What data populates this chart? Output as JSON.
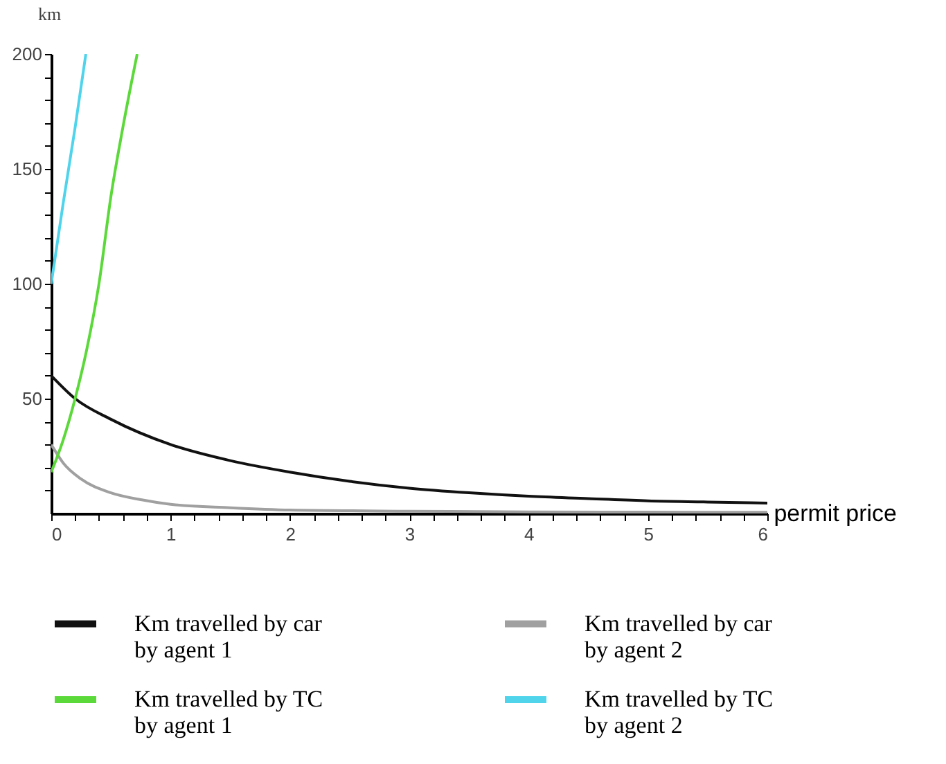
{
  "chart_data": {
    "type": "line",
    "xlabel": "permit price",
    "ylabel": "km",
    "xlim": [
      0,
      6
    ],
    "ylim": [
      0,
      200
    ],
    "xticks": [
      0,
      {
        "value": 0.2,
        "label": null
      },
      {
        "value": 0.4,
        "label": null
      },
      {
        "value": 0.6,
        "label": null
      },
      {
        "value": 0.8,
        "label": null
      },
      1,
      {
        "value": 1.2,
        "label": null
      },
      {
        "value": 1.4,
        "label": null
      },
      {
        "value": 1.6,
        "label": null
      },
      {
        "value": 1.8,
        "label": null
      },
      2,
      {
        "value": 2.2,
        "label": null
      },
      {
        "value": 2.4,
        "label": null
      },
      {
        "value": 2.6,
        "label": null
      },
      {
        "value": 2.8,
        "label": null
      },
      3,
      {
        "value": 3.2,
        "label": null
      },
      {
        "value": 3.4,
        "label": null
      },
      {
        "value": 3.6,
        "label": null
      },
      {
        "value": 3.8,
        "label": null
      },
      4,
      {
        "value": 4.2,
        "label": null
      },
      {
        "value": 4.4,
        "label": null
      },
      {
        "value": 4.6,
        "label": null
      },
      {
        "value": 4.8,
        "label": null
      },
      5,
      {
        "value": 5.2,
        "label": null
      },
      {
        "value": 5.4,
        "label": null
      },
      {
        "value": 5.6,
        "label": null
      },
      {
        "value": 5.8,
        "label": null
      },
      6
    ],
    "yticks": [
      {
        "value": 10,
        "label": null
      },
      {
        "value": 20,
        "label": null
      },
      {
        "value": 30,
        "label": null
      },
      {
        "value": 40,
        "label": null
      },
      50,
      {
        "value": 60,
        "label": null
      },
      {
        "value": 70,
        "label": null
      },
      {
        "value": 80,
        "label": null
      },
      {
        "value": 90,
        "label": null
      },
      100,
      {
        "value": 110,
        "label": null
      },
      {
        "value": 120,
        "label": null
      },
      {
        "value": 130,
        "label": null
      },
      {
        "value": 140,
        "label": null
      },
      150,
      {
        "value": 160,
        "label": null
      },
      {
        "value": 170,
        "label": null
      },
      {
        "value": 180,
        "label": null
      },
      {
        "value": 190,
        "label": null
      },
      200
    ],
    "legend": "bottom",
    "series": [
      {
        "name": "Km travelled by car by agent 1",
        "color": "#111111",
        "x": [
          0,
          0.2,
          0.5,
          1,
          1.5,
          2,
          2.5,
          3,
          3.5,
          4,
          4.5,
          5,
          5.5,
          6
        ],
        "values": [
          60,
          50,
          41,
          30,
          23,
          18,
          14,
          11,
          9,
          7.5,
          6.5,
          5.5,
          5,
          4.5
        ]
      },
      {
        "name": "Km travelled by car by agent 2",
        "color": "#a0a0a0",
        "x": [
          0,
          0.1,
          0.25,
          0.5,
          0.75,
          1,
          1.5,
          2,
          3,
          4,
          5,
          6
        ],
        "values": [
          30,
          22,
          15,
          9,
          6,
          4,
          2.5,
          1.5,
          1,
          0.7,
          0.6,
          0.5
        ]
      },
      {
        "name": "Km travelled by TC by agent 1",
        "color": "#5cd93a",
        "x": [
          0,
          0.1,
          0.2,
          0.3,
          0.4,
          0.5,
          0.6,
          0.72
        ],
        "values": [
          18,
          32,
          50,
          72,
          100,
          138,
          168,
          200
        ]
      },
      {
        "name": "Km travelled by TC by agent 2",
        "color": "#4fd4ec",
        "x": [
          0,
          0.1,
          0.2,
          0.29
        ],
        "values": [
          100,
          135,
          168,
          200
        ]
      }
    ]
  }
}
